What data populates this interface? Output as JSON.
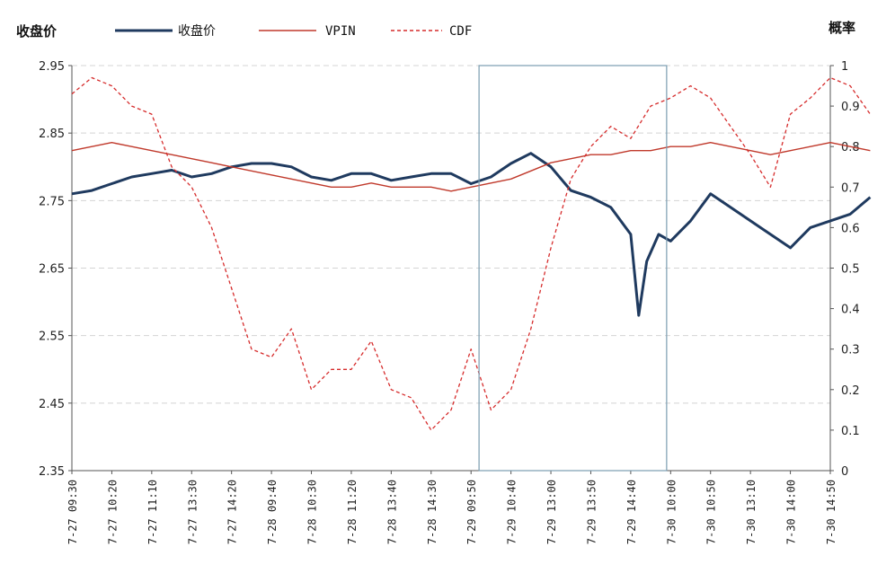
{
  "chart_data": {
    "type": "line",
    "ylabel_left": "收盘价",
    "ylabel_right": "概率",
    "ylim_left": [
      2.35,
      2.95
    ],
    "yticks_left": [
      "2.95",
      "2.85",
      "2.75",
      "2.65",
      "2.55",
      "2.45",
      "2.35"
    ],
    "ylim_right": [
      0,
      1
    ],
    "yticks_right": [
      "1",
      "0.9",
      "0.8",
      "0.7",
      "0.6",
      "0.5",
      "0.4",
      "0.3",
      "0.2",
      "0.1",
      "0"
    ],
    "x_tick_labels": [
      "7-27 09:30",
      "7-27 10:20",
      "7-27 11:10",
      "7-27 13:30",
      "7-27 14:20",
      "7-28 09:40",
      "7-28 10:30",
      "7-28 11:20",
      "7-28 13:40",
      "7-28 14:30",
      "7-29 09:50",
      "7-29 10:40",
      "7-29 13:00",
      "7-29 13:50",
      "7-29 14:40",
      "7-30 10:00",
      "7-30 10:50",
      "7-30 13:10",
      "7-30 14:00",
      "7-30 14:50"
    ],
    "grid": "horizontal dashed",
    "legend_position": "top",
    "highlight_box": {
      "x_from": 10.2,
      "x_to": 14.9
    },
    "series": [
      {
        "name": "收盘价",
        "axis": "left",
        "color": "#1f3a5f",
        "style": "solid-thick",
        "x": [
          0,
          0.5,
          1,
          1.5,
          2,
          2.5,
          3,
          3.5,
          4,
          4.5,
          5,
          5.5,
          6,
          6.5,
          7,
          7.5,
          8,
          8.5,
          9,
          9.5,
          10,
          10.5,
          11,
          11.5,
          12,
          12.5,
          13,
          13.5,
          14,
          14.2,
          14.4,
          14.7,
          15,
          15.5,
          16,
          16.5,
          17,
          17.5,
          18,
          18.5,
          19,
          19.5,
          20
        ],
        "y": [
          2.76,
          2.765,
          2.775,
          2.785,
          2.79,
          2.795,
          2.785,
          2.79,
          2.8,
          2.805,
          2.805,
          2.8,
          2.785,
          2.78,
          2.79,
          2.79,
          2.78,
          2.785,
          2.79,
          2.79,
          2.775,
          2.785,
          2.805,
          2.82,
          2.8,
          2.765,
          2.755,
          2.74,
          2.7,
          2.58,
          2.66,
          2.7,
          2.69,
          2.72,
          2.76,
          2.74,
          2.72,
          2.7,
          2.68,
          2.71,
          2.72,
          2.73,
          2.755
        ]
      },
      {
        "name": "VPIN",
        "axis": "right",
        "color": "#c0392b",
        "style": "solid-thin",
        "x": [
          0,
          0.5,
          1,
          1.5,
          2,
          2.5,
          3,
          3.5,
          4,
          4.5,
          5,
          5.5,
          6,
          6.5,
          7,
          7.5,
          8,
          8.5,
          9,
          9.5,
          10,
          10.5,
          11,
          11.5,
          12,
          12.5,
          13,
          13.5,
          14,
          14.5,
          15,
          15.5,
          16,
          16.5,
          17,
          17.5,
          18,
          18.5,
          19,
          19.5,
          20
        ],
        "y": [
          0.79,
          0.8,
          0.81,
          0.8,
          0.79,
          0.78,
          0.77,
          0.76,
          0.75,
          0.74,
          0.73,
          0.72,
          0.71,
          0.7,
          0.7,
          0.71,
          0.7,
          0.7,
          0.7,
          0.69,
          0.7,
          0.71,
          0.72,
          0.74,
          0.76,
          0.77,
          0.78,
          0.78,
          0.79,
          0.79,
          0.8,
          0.8,
          0.81,
          0.8,
          0.79,
          0.78,
          0.79,
          0.8,
          0.81,
          0.8,
          0.79
        ]
      },
      {
        "name": "CDF",
        "axis": "right",
        "color": "#d62c2c",
        "style": "dashed",
        "x": [
          0,
          0.5,
          1,
          1.5,
          2,
          2.5,
          3,
          3.5,
          4,
          4.5,
          5,
          5.5,
          6,
          6.5,
          7,
          7.5,
          8,
          8.5,
          9,
          9.5,
          10,
          10.5,
          11,
          11.5,
          12,
          12.5,
          13,
          13.5,
          14,
          14.5,
          15,
          15.5,
          16,
          16.5,
          17,
          17.5,
          18,
          18.5,
          19,
          19.5,
          20
        ],
        "y": [
          0.93,
          0.97,
          0.95,
          0.9,
          0.88,
          0.75,
          0.7,
          0.6,
          0.45,
          0.3,
          0.28,
          0.35,
          0.2,
          0.25,
          0.25,
          0.32,
          0.2,
          0.18,
          0.1,
          0.15,
          0.3,
          0.15,
          0.2,
          0.35,
          0.55,
          0.72,
          0.8,
          0.85,
          0.82,
          0.9,
          0.92,
          0.95,
          0.92,
          0.85,
          0.78,
          0.7,
          0.88,
          0.92,
          0.97,
          0.95,
          0.88
        ]
      }
    ]
  }
}
